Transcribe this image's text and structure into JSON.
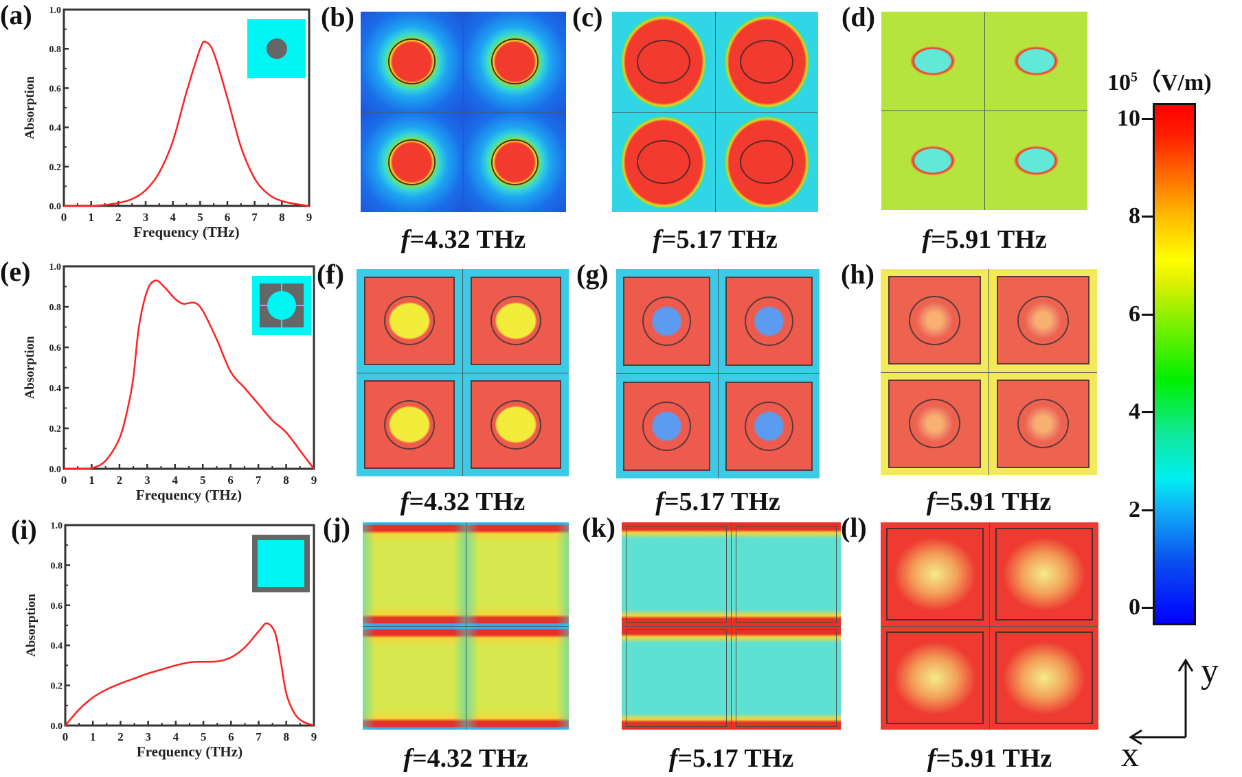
{
  "chart_data": [
    {
      "type": "line",
      "panel_label": "(a)",
      "xlabel": "Frequency (THz)",
      "ylabel": "Absorption",
      "xlim": [
        0,
        9
      ],
      "ylim": [
        0,
        1
      ],
      "xticks": [
        "0",
        "1",
        "2",
        "3",
        "4",
        "5",
        "6",
        "7",
        "8",
        "9"
      ],
      "yticks": [
        "0.0",
        "0.2",
        "0.4",
        "0.6",
        "0.8",
        "1.0"
      ],
      "line_color": "#ff2020",
      "inset": "circle-patch",
      "x": [
        0,
        0.5,
        1,
        1.5,
        2,
        2.5,
        3,
        3.5,
        4,
        4.5,
        5,
        5.2,
        5.5,
        6,
        6.5,
        7,
        7.5,
        8,
        8.5,
        9
      ],
      "y": [
        0,
        0,
        0,
        0.005,
        0.015,
        0.035,
        0.08,
        0.17,
        0.33,
        0.58,
        0.8,
        0.835,
        0.78,
        0.55,
        0.3,
        0.14,
        0.06,
        0.025,
        0.01,
        0
      ]
    },
    {
      "type": "line",
      "panel_label": "(e)",
      "xlabel": "Frequency (THz)",
      "ylabel": "Absorption",
      "xlim": [
        0,
        9
      ],
      "ylim": [
        0,
        1
      ],
      "xticks": [
        "0",
        "1",
        "2",
        "3",
        "4",
        "5",
        "6",
        "7",
        "8",
        "9"
      ],
      "yticks": [
        "0.0",
        "0.2",
        "0.4",
        "0.6",
        "0.8",
        "1.0"
      ],
      "line_color": "#ff2020",
      "inset": "split-square-with-hole",
      "x": [
        0,
        0.5,
        1,
        1.5,
        2,
        2.3,
        2.5,
        2.7,
        3,
        3.3,
        3.6,
        4,
        4.3,
        4.7,
        5,
        5.5,
        6,
        6.5,
        7,
        7.5,
        8,
        8.5,
        9
      ],
      "y": [
        0,
        0,
        0.003,
        0.04,
        0.15,
        0.3,
        0.45,
        0.7,
        0.88,
        0.93,
        0.9,
        0.84,
        0.815,
        0.82,
        0.78,
        0.64,
        0.48,
        0.4,
        0.32,
        0.24,
        0.18,
        0.09,
        0
      ]
    },
    {
      "type": "line",
      "panel_label": "(i)",
      "xlabel": "Frequency (THz)",
      "ylabel": "Absorption",
      "xlim": [
        0,
        9
      ],
      "ylim": [
        0,
        1
      ],
      "xticks": [
        "0",
        "1",
        "2",
        "3",
        "4",
        "5",
        "6",
        "7",
        "8",
        "9"
      ],
      "yticks": [
        "0.0",
        "0.2",
        "0.4",
        "0.6",
        "0.8",
        "1.0"
      ],
      "line_color": "#ff2020",
      "inset": "square-ring",
      "x": [
        0,
        0.5,
        1,
        1.5,
        2,
        2.5,
        3,
        3.5,
        4,
        4.5,
        5,
        5.5,
        6,
        6.5,
        7,
        7.3,
        7.6,
        7.8,
        8,
        8.3,
        8.6,
        9
      ],
      "y": [
        0,
        0.08,
        0.14,
        0.18,
        0.21,
        0.235,
        0.26,
        0.28,
        0.3,
        0.315,
        0.318,
        0.32,
        0.34,
        0.39,
        0.47,
        0.51,
        0.46,
        0.32,
        0.16,
        0.06,
        0.02,
        0
      ]
    }
  ],
  "field_maps": [
    {
      "label": "(b)",
      "var": "f",
      "value": "=4.32 THz"
    },
    {
      "label": "(c)",
      "var": "f",
      "value": "=5.17 THz"
    },
    {
      "label": "(d)",
      "var": "f",
      "value": "=5.91 THz"
    },
    {
      "label": "(f)",
      "var": "f",
      "value": "=4.32 THz"
    },
    {
      "label": "(g)",
      "var": "f",
      "value": "=5.17 THz"
    },
    {
      "label": "(h)",
      "var": "f",
      "value": "=5.91 THz"
    },
    {
      "label": "(j)",
      "var": "f",
      "value": "=4.32 THz"
    },
    {
      "label": "(k)",
      "var": "f",
      "value": "=5.17 THz"
    },
    {
      "label": "(l)",
      "var": "f",
      "value": "=5.91 THz"
    }
  ],
  "colorbar": {
    "unit_base": "10",
    "unit_exp": "5",
    "unit": "（V/m)",
    "ticks": [
      "10",
      "8",
      "6",
      "4",
      "2",
      "0"
    ],
    "range": [
      0,
      10
    ]
  },
  "axes_indicator": {
    "y": "y",
    "x": "x"
  }
}
